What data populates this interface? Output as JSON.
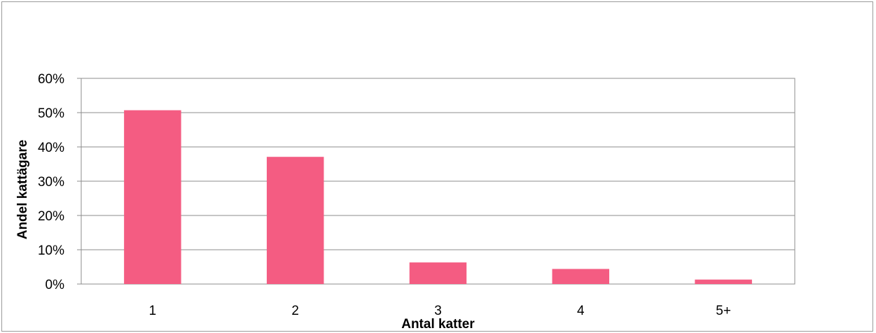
{
  "chart_data": {
    "type": "bar",
    "title": "",
    "categories": [
      "1",
      "2",
      "3",
      "4",
      "5+"
    ],
    "values": [
      0.507,
      0.371,
      0.063,
      0.044,
      0.013
    ],
    "xlabel": "Antal katter",
    "ylabel": "Andel kattägare",
    "ylim": [
      0,
      0.6
    ],
    "yticks": [
      0,
      0.1,
      0.2,
      0.3,
      0.4,
      0.5,
      0.6
    ],
    "ytick_labels": [
      "0%",
      "10%",
      "20%",
      "30%",
      "40%",
      "50%",
      "60%"
    ],
    "grid": true,
    "legend": "none",
    "colors": {
      "bar": "#f45c82",
      "grid": "#8c8c8c",
      "axis": "#808080"
    }
  }
}
